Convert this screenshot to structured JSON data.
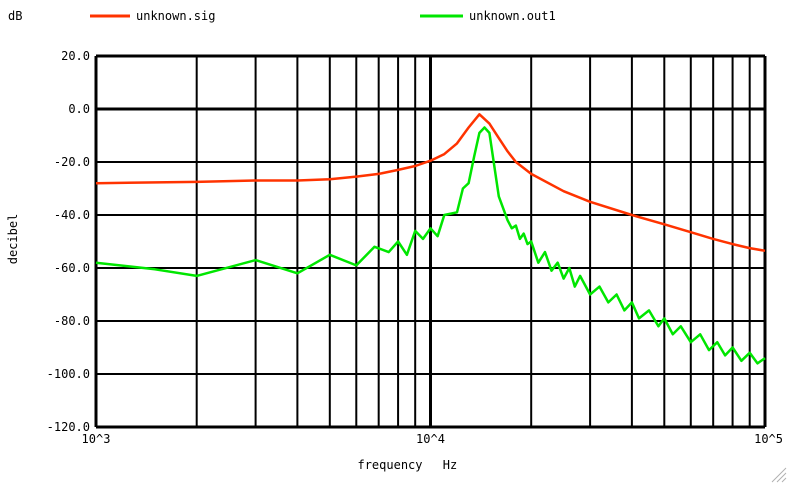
{
  "chart_data": {
    "type": "line",
    "title": "",
    "xlabel": "frequency",
    "xunit": "Hz",
    "ylabel": "decibel",
    "yunit": "dB",
    "x_scale": "log",
    "xlim": [
      1000,
      100000
    ],
    "ylim": [
      -120,
      20
    ],
    "grid": true,
    "legend_position": "top",
    "x_tick_labels": [
      {
        "value": 1000,
        "label": "10^3"
      },
      {
        "value": 10000,
        "label": "10^4"
      },
      {
        "value": 100000,
        "label": "10^5"
      }
    ],
    "y_tick_labels": [
      {
        "value": 20,
        "label": "20.0"
      },
      {
        "value": 0,
        "label": "0.0"
      },
      {
        "value": -20,
        "label": "-20.0"
      },
      {
        "value": -40,
        "label": "-40.0"
      },
      {
        "value": -60,
        "label": "-60.0"
      },
      {
        "value": -80,
        "label": "-80.0"
      },
      {
        "value": -100,
        "label": "-100.0"
      },
      {
        "value": -120,
        "label": "-120.0"
      }
    ],
    "series": [
      {
        "name": "unknown.sig",
        "color": "#ff3300",
        "x": [
          1000,
          2000,
          3000,
          4000,
          5000,
          6000,
          7000,
          8000,
          9000,
          10000,
          11000,
          12000,
          13000,
          14000,
          15000,
          16000,
          17000,
          18000,
          20000,
          25000,
          30000,
          40000,
          50000,
          60000,
          70000,
          80000,
          90000,
          100000
        ],
        "values": [
          -28,
          -27.5,
          -27,
          -27,
          -26.5,
          -25.5,
          -24.5,
          -23,
          -21.5,
          -19.5,
          -17,
          -13,
          -7,
          -2,
          -5.5,
          -11,
          -16,
          -20,
          -24.5,
          -31,
          -35,
          -40,
          -43.5,
          -46.5,
          -49,
          -51,
          -52.5,
          -53.5
        ]
      },
      {
        "name": "unknown.out1",
        "color": "#00e600",
        "x": [
          1000,
          1500,
          2000,
          3000,
          4000,
          5000,
          6000,
          6800,
          7500,
          8000,
          8500,
          9000,
          9500,
          10000,
          10500,
          11000,
          12000,
          12500,
          13000,
          13500,
          14000,
          14500,
          15000,
          16000,
          17000,
          17500,
          18000,
          18500,
          19000,
          19500,
          20000,
          21000,
          22000,
          23000,
          24000,
          25000,
          26000,
          27000,
          28000,
          30000,
          32000,
          34000,
          36000,
          38000,
          40000,
          42000,
          45000,
          48000,
          50000,
          53000,
          56000,
          60000,
          64000,
          68000,
          72000,
          76000,
          80000,
          85000,
          90000,
          95000,
          100000
        ],
        "values": [
          -58,
          -60.5,
          -63,
          -57,
          -62,
          -55,
          -59,
          -52,
          -54,
          -50,
          -55,
          -46,
          -49,
          -45,
          -48,
          -40,
          -39,
          -30,
          -28,
          -18,
          -9,
          -7,
          -9,
          -33,
          -42,
          -45,
          -44,
          -49,
          -47,
          -51,
          -50,
          -58,
          -54,
          -61,
          -58,
          -64,
          -60,
          -67,
          -63,
          -70,
          -67,
          -73,
          -70,
          -76,
          -73,
          -79,
          -76,
          -82,
          -79,
          -85,
          -82,
          -88,
          -85,
          -91,
          -88,
          -93,
          -90,
          -95,
          -92,
          -96,
          -94
        ]
      }
    ]
  }
}
